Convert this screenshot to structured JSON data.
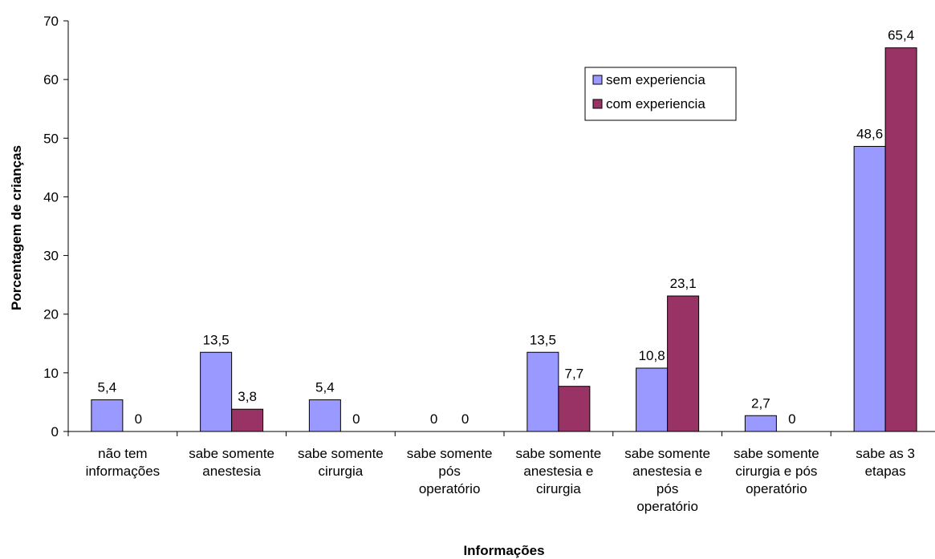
{
  "chart_data": {
    "type": "bar",
    "xlabel": "Informações",
    "ylabel": "Porcentagem de crianças",
    "ylim": [
      0,
      70
    ],
    "yticks": [
      0,
      10,
      20,
      30,
      40,
      50,
      60,
      70
    ],
    "grid": false,
    "legend_position": "top-right",
    "categories": [
      [
        "não tem",
        "informações"
      ],
      [
        "sabe somente",
        "anestesia"
      ],
      [
        "sabe somente",
        "cirurgia"
      ],
      [
        "sabe somente",
        "pós",
        "operatório"
      ],
      [
        "sabe somente",
        "anestesia e",
        "cirurgia"
      ],
      [
        "sabe somente",
        "anestesia e",
        "pós",
        "operatório"
      ],
      [
        "sabe somente",
        "cirurgia e pós",
        "operatório"
      ],
      [
        "sabe as 3",
        "etapas"
      ]
    ],
    "series": [
      {
        "name": "sem experiencia",
        "color": "#9999FF",
        "values": [
          5.4,
          13.5,
          5.4,
          0,
          13.5,
          10.8,
          2.7,
          48.6
        ],
        "labels": [
          "5,4",
          "13,5",
          "5,4",
          "0",
          "13,5",
          "10,8",
          "2,7",
          "48,6"
        ]
      },
      {
        "name": "com experiencia",
        "color": "#993366",
        "values": [
          0,
          3.8,
          0,
          0,
          7.7,
          23.1,
          0,
          65.4
        ],
        "labels": [
          "0",
          "3,8",
          "0",
          "0",
          "7,7",
          "23,1",
          "0",
          "65,4"
        ]
      }
    ]
  }
}
